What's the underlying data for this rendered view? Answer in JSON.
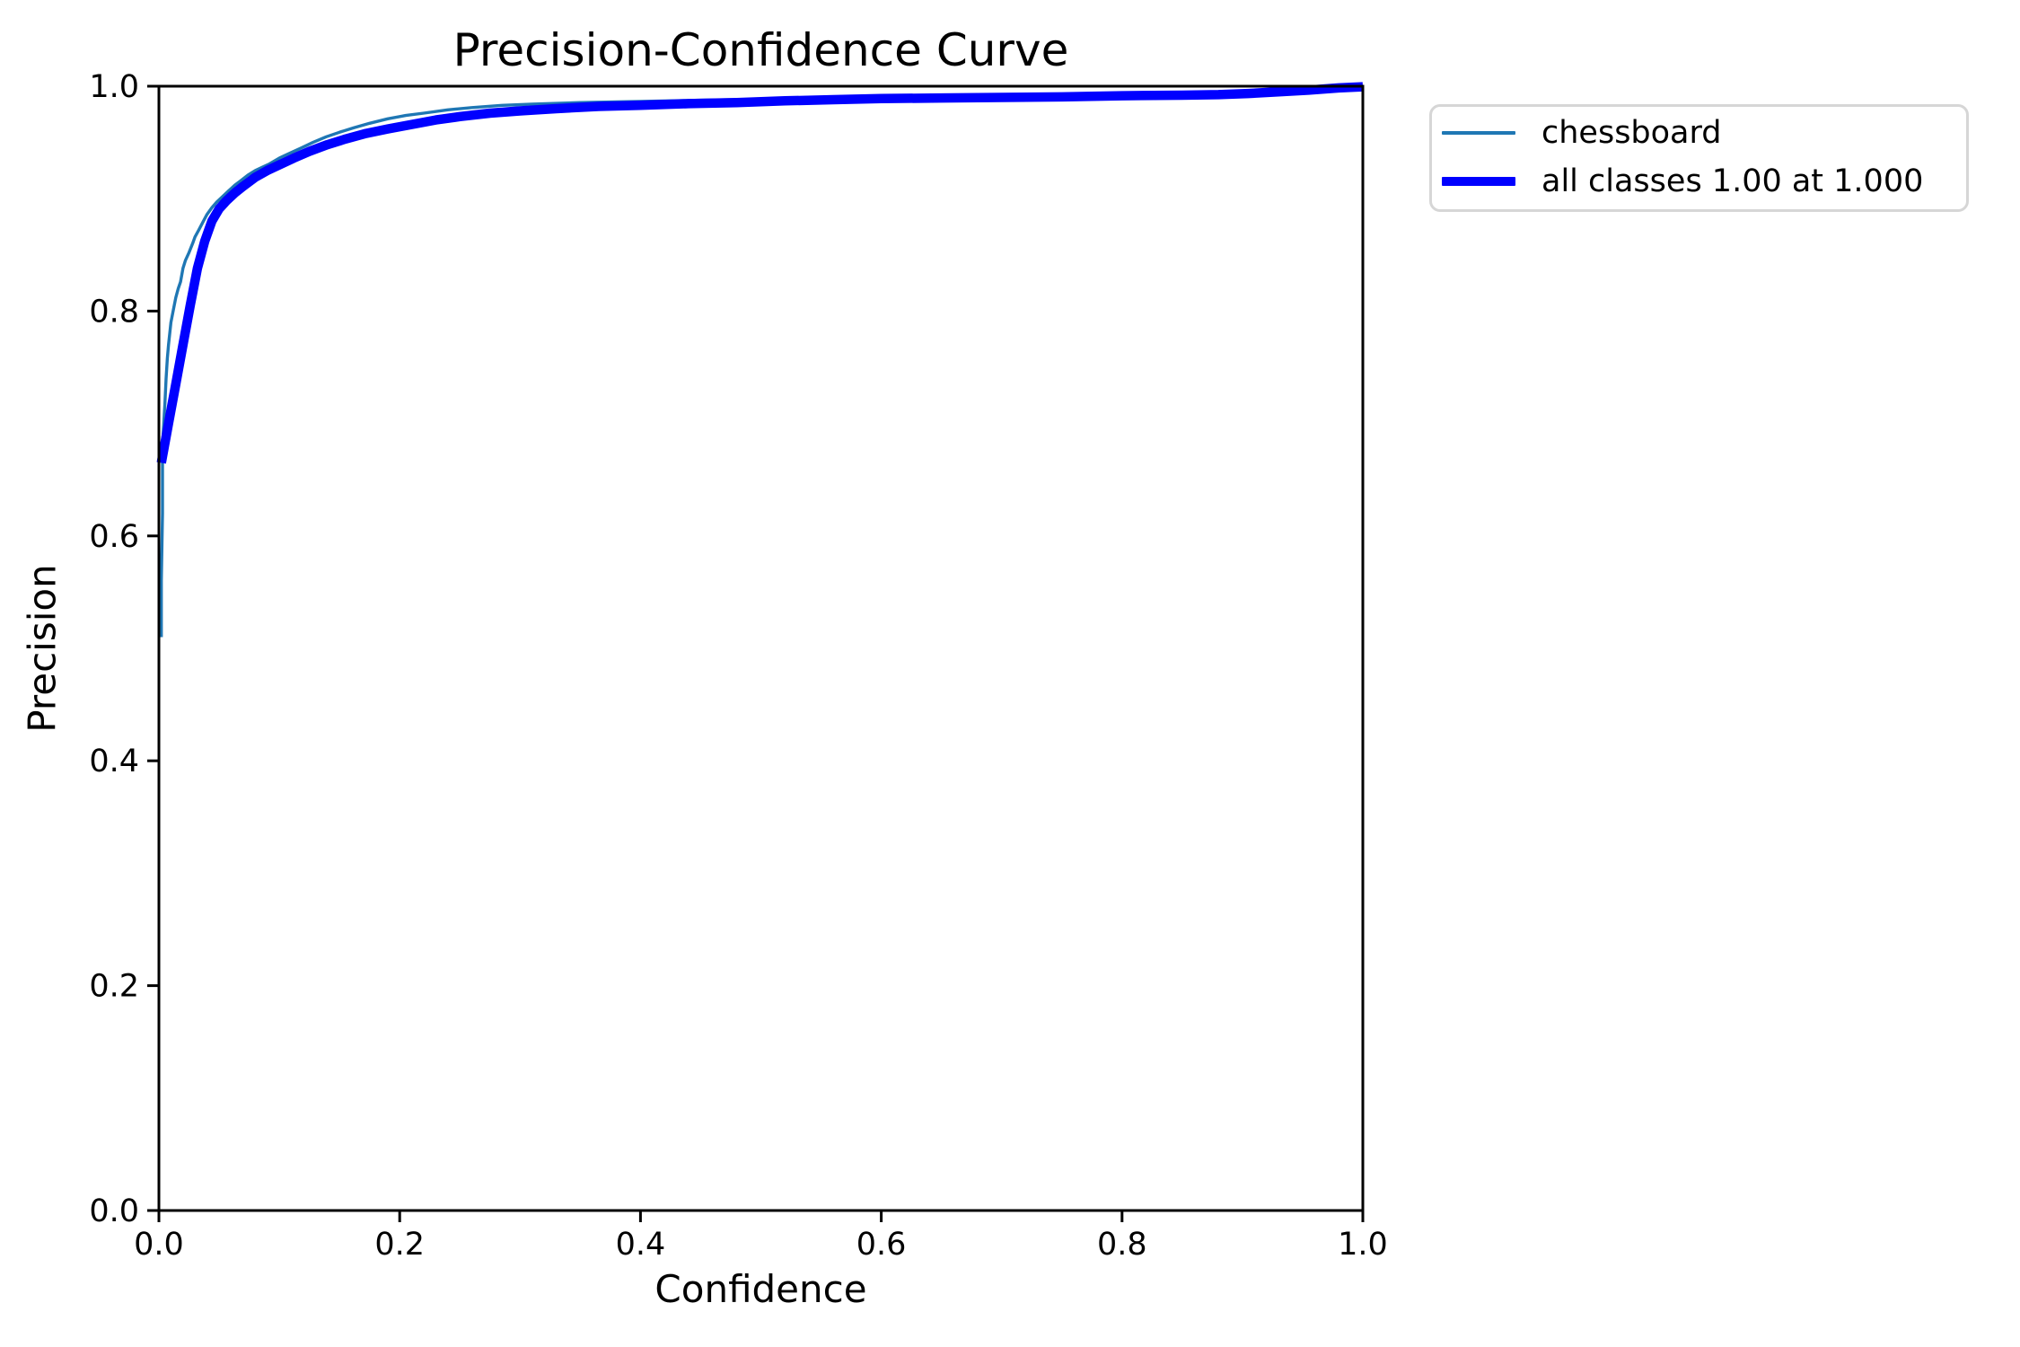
{
  "figure": {
    "background": "#ffffff",
    "axis_color": "#000000",
    "legend_border_color": "#d6d6d6"
  },
  "chart_data": {
    "type": "line",
    "title": "Precision-Confidence Curve",
    "xlabel": "Confidence",
    "ylabel": "Precision",
    "xlim": [
      0.0,
      1.0
    ],
    "ylim": [
      0.0,
      1.0
    ],
    "x_ticks": [
      "0.0",
      "0.2",
      "0.4",
      "0.6",
      "0.8",
      "1.0"
    ],
    "y_ticks": [
      "0.0",
      "0.2",
      "0.4",
      "0.6",
      "0.8",
      "1.0"
    ],
    "grid": false,
    "legend_position": "outside-upper-right",
    "series": [
      {
        "name": "chessboard",
        "label": "chessboard",
        "color": "#1f77b4",
        "line_width": 3.4,
        "points": [
          [
            0.002,
            0.51
          ],
          [
            0.002,
            0.56
          ],
          [
            0.003,
            0.62
          ],
          [
            0.003,
            0.68
          ],
          [
            0.004,
            0.7
          ],
          [
            0.005,
            0.718
          ],
          [
            0.006,
            0.74
          ],
          [
            0.007,
            0.758
          ],
          [
            0.008,
            0.77
          ],
          [
            0.01,
            0.79
          ],
          [
            0.012,
            0.801
          ],
          [
            0.014,
            0.812
          ],
          [
            0.016,
            0.82
          ],
          [
            0.018,
            0.826
          ],
          [
            0.02,
            0.838
          ],
          [
            0.022,
            0.845
          ],
          [
            0.025,
            0.852
          ],
          [
            0.028,
            0.86
          ],
          [
            0.03,
            0.866
          ],
          [
            0.033,
            0.872
          ],
          [
            0.036,
            0.878
          ],
          [
            0.04,
            0.886
          ],
          [
            0.044,
            0.892
          ],
          [
            0.048,
            0.897
          ],
          [
            0.053,
            0.902
          ],
          [
            0.058,
            0.907
          ],
          [
            0.063,
            0.912
          ],
          [
            0.068,
            0.916
          ],
          [
            0.074,
            0.921
          ],
          [
            0.08,
            0.925
          ],
          [
            0.086,
            0.928
          ],
          [
            0.092,
            0.931
          ],
          [
            0.1,
            0.936
          ],
          [
            0.108,
            0.94
          ],
          [
            0.118,
            0.945
          ],
          [
            0.128,
            0.95
          ],
          [
            0.139,
            0.955
          ],
          [
            0.15,
            0.959
          ],
          [
            0.162,
            0.963
          ],
          [
            0.175,
            0.967
          ],
          [
            0.19,
            0.971
          ],
          [
            0.205,
            0.974
          ],
          [
            0.22,
            0.976
          ],
          [
            0.24,
            0.979
          ],
          [
            0.26,
            0.981
          ],
          [
            0.285,
            0.983
          ],
          [
            0.31,
            0.984
          ],
          [
            0.35,
            0.9855
          ],
          [
            0.4,
            0.9865
          ],
          [
            0.45,
            0.9875
          ],
          [
            0.5,
            0.9885
          ],
          [
            0.55,
            0.9895
          ],
          [
            0.6,
            0.99
          ],
          [
            0.65,
            0.9905
          ],
          [
            0.7,
            0.991
          ],
          [
            0.75,
            0.9915
          ],
          [
            0.8,
            0.992
          ],
          [
            0.85,
            0.993
          ],
          [
            0.88,
            0.9935
          ],
          [
            0.905,
            0.9945
          ],
          [
            0.93,
            0.996
          ],
          [
            0.955,
            0.9975
          ],
          [
            0.98,
            0.999
          ],
          [
            1.0,
            1.0
          ]
        ]
      },
      {
        "name": "all-classes",
        "label": "all classes 1.00 at 1.000",
        "color": "#0000ff",
        "line_width": 10.5,
        "points": [
          [
            0.002,
            0.665
          ],
          [
            0.008,
            0.7
          ],
          [
            0.014,
            0.735
          ],
          [
            0.02,
            0.77
          ],
          [
            0.026,
            0.805
          ],
          [
            0.032,
            0.838
          ],
          [
            0.038,
            0.862
          ],
          [
            0.044,
            0.88
          ],
          [
            0.05,
            0.891
          ],
          [
            0.056,
            0.898
          ],
          [
            0.063,
            0.905
          ],
          [
            0.07,
            0.911
          ],
          [
            0.08,
            0.919
          ],
          [
            0.09,
            0.925
          ],
          [
            0.1,
            0.93
          ],
          [
            0.112,
            0.936
          ],
          [
            0.125,
            0.942
          ],
          [
            0.14,
            0.948
          ],
          [
            0.155,
            0.953
          ],
          [
            0.172,
            0.958
          ],
          [
            0.19,
            0.962
          ],
          [
            0.21,
            0.966
          ],
          [
            0.23,
            0.97
          ],
          [
            0.25,
            0.973
          ],
          [
            0.275,
            0.976
          ],
          [
            0.3,
            0.978
          ],
          [
            0.33,
            0.98
          ],
          [
            0.365,
            0.982
          ],
          [
            0.4,
            0.983
          ],
          [
            0.44,
            0.9845
          ],
          [
            0.48,
            0.9855
          ],
          [
            0.52,
            0.987
          ],
          [
            0.56,
            0.988
          ],
          [
            0.6,
            0.989
          ],
          [
            0.65,
            0.9895
          ],
          [
            0.7,
            0.99
          ],
          [
            0.75,
            0.9905
          ],
          [
            0.8,
            0.9915
          ],
          [
            0.85,
            0.992
          ],
          [
            0.88,
            0.9925
          ],
          [
            0.905,
            0.9935
          ],
          [
            0.93,
            0.995
          ],
          [
            0.955,
            0.9965
          ],
          [
            0.98,
            0.9985
          ],
          [
            1.0,
            0.9995
          ]
        ]
      }
    ]
  }
}
